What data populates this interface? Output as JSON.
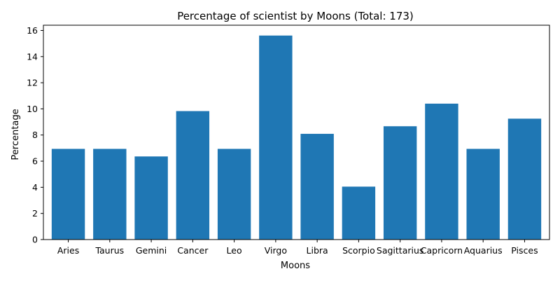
{
  "chart_data": {
    "type": "bar",
    "title": "Percentage of scientist by Moons (Total: 173)",
    "xlabel": "Moons",
    "ylabel": "Percentage",
    "categories": [
      "Aries",
      "Taurus",
      "Gemini",
      "Cancer",
      "Leo",
      "Virgo",
      "Libra",
      "Scorpio",
      "Sagittarius",
      "Capricorn",
      "Aquarius",
      "Pisces"
    ],
    "values": [
      6.94,
      6.94,
      6.36,
      9.83,
      6.94,
      15.61,
      8.09,
      4.05,
      8.67,
      10.4,
      6.94,
      9.25
    ],
    "ylim": [
      0,
      16.4
    ],
    "yticks": [
      0,
      2,
      4,
      6,
      8,
      10,
      12,
      14,
      16
    ],
    "bar_color": "#1f77b4",
    "grid": false,
    "legend": "none"
  }
}
